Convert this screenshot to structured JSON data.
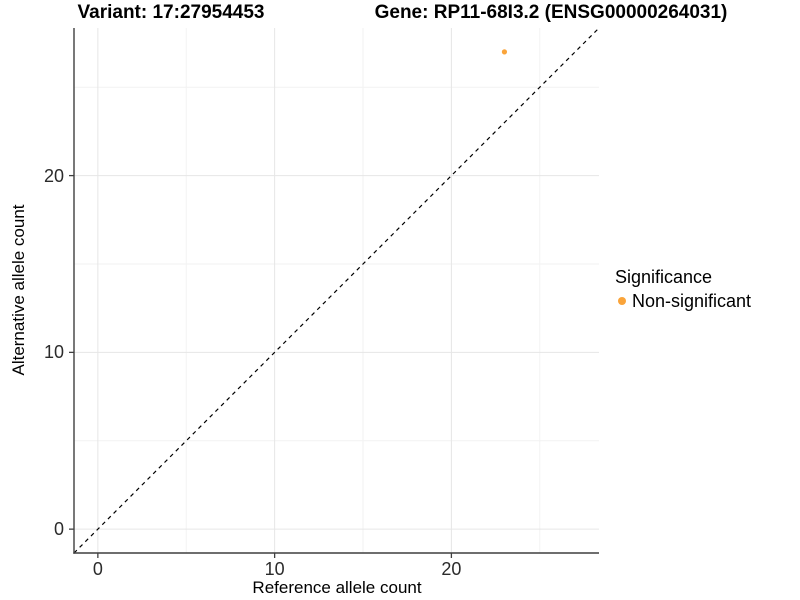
{
  "chart_data": {
    "type": "scatter",
    "title_left": "Variant: 17:27954453",
    "title_right": "Gene: RP11-68I3.2 (ENSG00000264031)",
    "xlabel": "Reference allele count",
    "ylabel": "Alternative allele count",
    "xlim": [
      -1.35,
      28.35
    ],
    "ylim": [
      -1.35,
      28.35
    ],
    "x_ticks": [
      0,
      10,
      20
    ],
    "y_ticks": [
      0,
      10,
      20
    ],
    "x_minor_ticks": [
      5,
      15,
      25
    ],
    "y_minor_ticks": [
      5,
      15,
      25
    ],
    "grid": true,
    "points": [
      {
        "x": 23,
        "y": 27,
        "series": "Non-significant"
      }
    ],
    "reference_line": {
      "slope": 1,
      "intercept": 0,
      "style": "dashed",
      "color": "#000000"
    },
    "legend": {
      "title": "Significance",
      "position": "right",
      "items": [
        {
          "label": "Non-significant",
          "color": "#FAA43A"
        }
      ]
    },
    "colors": {
      "point": "#FAA43A",
      "grid_major": "#E6E6E6",
      "grid_minor": "#F2F2F2",
      "axis": "#3F3F3F",
      "tick_label": "#2B2B2B",
      "text": "#000000",
      "background": "#FFFFFF"
    }
  }
}
